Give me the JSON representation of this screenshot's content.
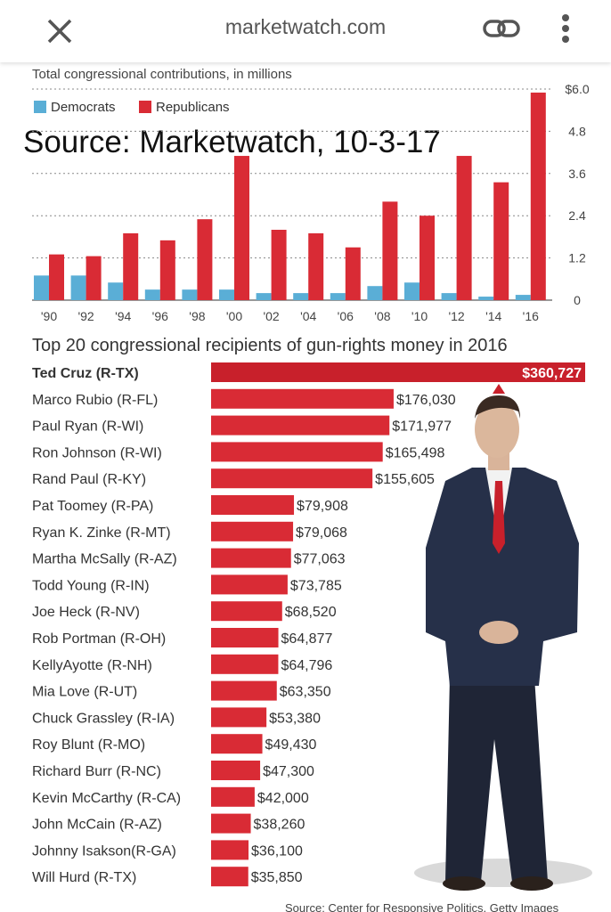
{
  "browser": {
    "url": "marketwatch.com",
    "close_icon": "close-icon",
    "link_icon": "link-icon",
    "menu_icon": "more-vert-icon"
  },
  "overlay_text": "Source: Marketwatch, 10-3-17",
  "colors": {
    "democrats": "#5aaed6",
    "republicans": "#d92b35",
    "top_bar": "#c8202b",
    "axis_text": "#444444",
    "grid": "#888888"
  },
  "footer_text": "Source: Center for Responsive Politics, Getty Images",
  "chart_data": [
    {
      "type": "bar",
      "title": "Total congressional contributions, in millions",
      "categories": [
        "'90",
        "'92",
        "'94",
        "'96",
        "'98",
        "'00",
        "'02",
        "'04",
        "'06",
        "'08",
        "'10",
        "'12",
        "'14",
        "'16"
      ],
      "series": [
        {
          "name": "Democrats",
          "values": [
            0.7,
            0.7,
            0.5,
            0.3,
            0.3,
            0.3,
            0.2,
            0.2,
            0.2,
            0.4,
            0.5,
            0.2,
            0.1,
            0.15
          ]
        },
        {
          "name": "Republicans",
          "values": [
            1.3,
            1.25,
            1.9,
            1.7,
            2.3,
            4.1,
            2.0,
            1.9,
            1.5,
            2.8,
            2.4,
            4.1,
            3.35,
            5.9
          ]
        }
      ],
      "yticks": [
        0,
        1.2,
        2.4,
        3.6,
        4.8,
        6.0
      ],
      "ytick_labels": [
        "0",
        "1.2",
        "2.4",
        "3.6",
        "4.8",
        "$6.0"
      ],
      "ylim": [
        0,
        6.0
      ],
      "legend": [
        "Democrats",
        "Republicans"
      ],
      "xlabel": "",
      "ylabel": ""
    },
    {
      "type": "bar",
      "orientation": "horizontal",
      "title": "Top 20 congressional recipients of gun-rights money in 2016",
      "categories": [
        "Ted Cruz (R-TX)",
        "Marco Rubio (R-FL)",
        "Paul Ryan (R-WI)",
        "Ron Johnson (R-WI)",
        "Rand Paul (R-KY)",
        "Pat Toomey (R-PA)",
        "Ryan K. Zinke (R-MT)",
        "Martha McSally (R-AZ)",
        "Todd Young (R-IN)",
        "Joe Heck (R-NV)",
        "Rob Portman (R-OH)",
        "KellyAyotte (R-NH)",
        "Mia Love (R-UT)",
        "Chuck Grassley (R-IA)",
        "Roy Blunt (R-MO)",
        "Richard Burr (R-NC)",
        "Kevin McCarthy (R-CA)",
        "John McCain (R-AZ)",
        "Johnny  Isakson(R-GA)",
        "Will Hurd (R-TX)"
      ],
      "values": [
        360727,
        176030,
        171977,
        165498,
        155605,
        79908,
        79068,
        77063,
        73785,
        68520,
        64877,
        64796,
        63350,
        53380,
        49430,
        47300,
        42000,
        38260,
        36100,
        35850
      ],
      "value_labels": [
        "$360,727",
        "$176,030",
        "$171,977",
        "$165,498",
        "$155,605",
        "$79,908",
        "$79,068",
        "$77,063",
        "$73,785",
        "$68,520",
        "$64,877",
        "$64,796",
        "$63,350",
        "$53,380",
        "$49,430",
        "$47,300",
        "$42,000",
        "$38,260",
        "$36,100",
        "$35,850"
      ],
      "xlim": [
        0,
        360727
      ]
    }
  ]
}
